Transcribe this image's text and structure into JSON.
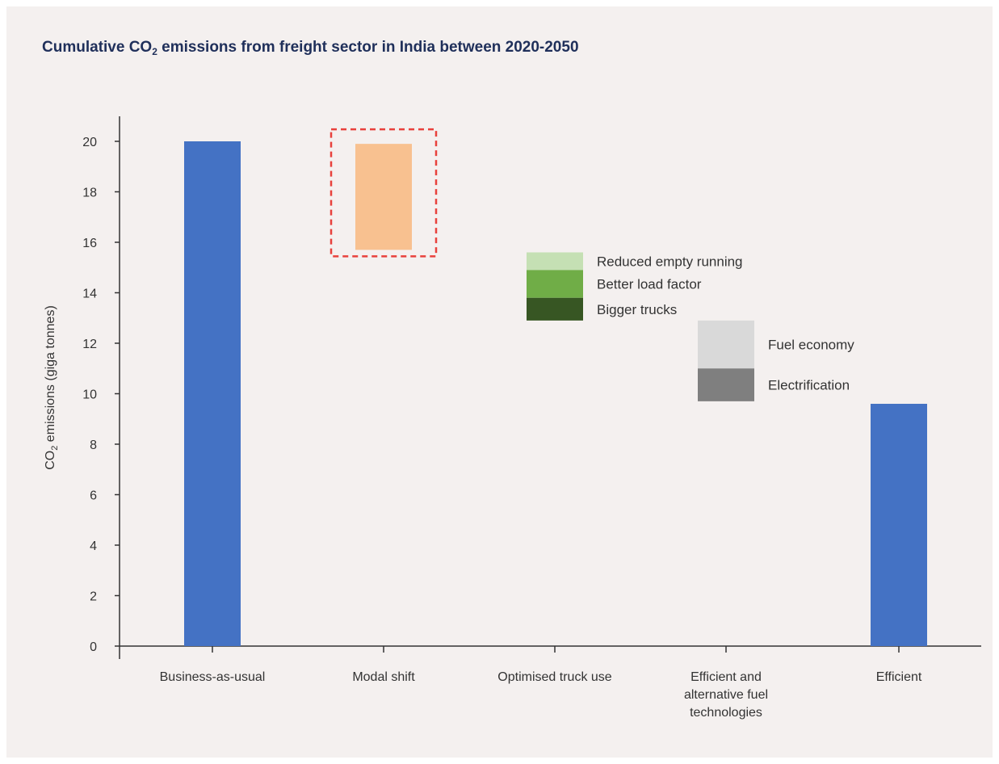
{
  "chart_data": {
    "type": "bar",
    "title": {
      "prefix": "Cumulative CO",
      "subscript": "2",
      "suffix": " emissions from freight sector in India between 2020-2050"
    },
    "ylabel": {
      "prefix": "CO",
      "subscript": "2",
      "suffix": " emissions (giga tonnes)"
    },
    "ylim": [
      0,
      20
    ],
    "yticks": [
      0,
      2,
      4,
      6,
      8,
      10,
      12,
      14,
      16,
      18,
      20
    ],
    "grid": false,
    "categories": [
      {
        "lines": [
          "Business-as-usual"
        ]
      },
      {
        "lines": [
          "Modal shift"
        ]
      },
      {
        "lines": [
          "Optimised truck use"
        ]
      },
      {
        "lines": [
          "Efficient and",
          "alternative fuel",
          "technologies"
        ]
      },
      {
        "lines": [
          "Efficient"
        ]
      }
    ],
    "segments": [
      {
        "category": 0,
        "name": "Business-as-usual",
        "bottom": 0,
        "top": 20.0,
        "color": "#4472c4"
      },
      {
        "category": 1,
        "name": "Modal shift",
        "bottom": 15.7,
        "top": 19.9,
        "color": "#f8c190",
        "highlight": true
      },
      {
        "category": 2,
        "name": "Reduced empty running",
        "bottom": 14.9,
        "top": 15.6,
        "color": "#c5e0b4",
        "label": "Reduced empty running"
      },
      {
        "category": 2,
        "name": "Better load factor",
        "bottom": 13.8,
        "top": 14.9,
        "color": "#70ad47",
        "label": "Better load factor"
      },
      {
        "category": 2,
        "name": "Bigger trucks",
        "bottom": 12.9,
        "top": 13.8,
        "color": "#375623",
        "label": "Bigger trucks"
      },
      {
        "category": 3,
        "name": "Fuel economy",
        "bottom": 11.0,
        "top": 12.9,
        "color": "#d9d9d9",
        "label": "Fuel economy"
      },
      {
        "category": 3,
        "name": "Electrification",
        "bottom": 9.7,
        "top": 11.0,
        "color": "#7f7f7f",
        "label": "Electrification"
      },
      {
        "category": 4,
        "name": "Efficient",
        "bottom": 0,
        "top": 9.6,
        "color": "#4472c4"
      }
    ],
    "highlight_color": "#e8413c"
  }
}
